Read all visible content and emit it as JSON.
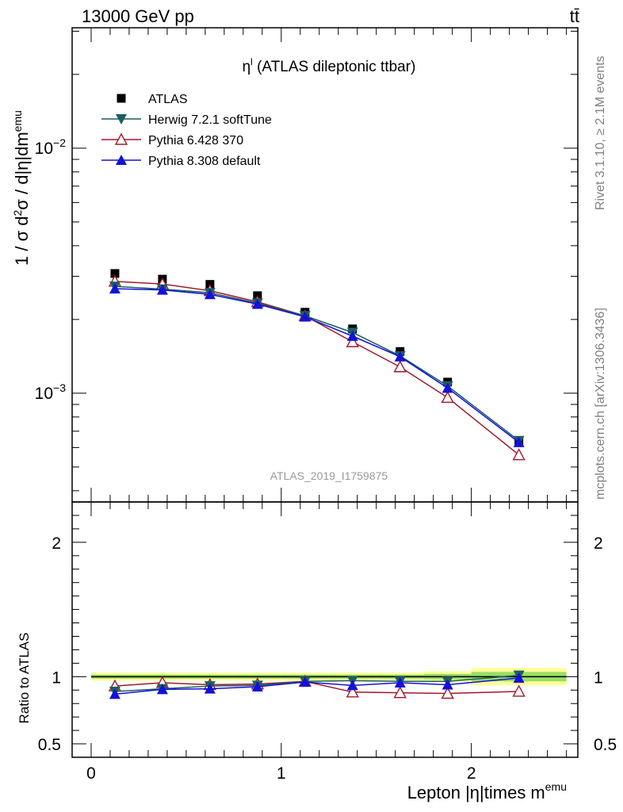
{
  "header": {
    "left": "13000 GeV pp",
    "right": "tt̄"
  },
  "side_text": {
    "rivet": "Rivet 3.1.10, ≥ 2.1M events",
    "mcplots": "mcplots.cern.ch [arXiv:1306.3436]"
  },
  "chart_data": {
    "type": "line",
    "title": "η^l (ATLAS dileptonic ttbar)",
    "title_base": "η",
    "title_sup": "l",
    "title_rest": " (ATLAS dileptonic ttbar)",
    "analysis_label": "ATLAS_2019_I1759875",
    "xlabel": "Lepton |η|times m^emu",
    "xlabel_base": "Lepton |η|times m",
    "xlabel_sup": "emu",
    "ylabel": "1 / σ d²σ / d|η|dm^emu",
    "xlim": [
      -0.1,
      2.56
    ],
    "xticks": [
      0,
      1,
      2
    ],
    "x": [
      0.125,
      0.375,
      0.625,
      0.875,
      1.125,
      1.375,
      1.625,
      1.875,
      2.25
    ],
    "main": {
      "yscale": "log",
      "ylim": [
        0.00036,
        0.031
      ],
      "ytick_labels": [
        "10^−3",
        "10^−2"
      ],
      "ytick_values": [
        0.001,
        0.01
      ],
      "series": [
        {
          "name": "ATLAS",
          "marker": "square",
          "color": "#000000",
          "line": false,
          "values": [
            0.00308,
            0.00292,
            0.00278,
            0.0025,
            0.00214,
            0.00183,
            0.00148,
            0.00111,
            0.00064
          ]
        },
        {
          "name": "Herwig 7.2.1 softTune",
          "marker": "triangle-down",
          "color": "#1d5e5e",
          "line": true,
          "values": [
            0.00273,
            0.00266,
            0.00257,
            0.00233,
            0.00207,
            0.00177,
            0.00142,
            0.00107,
            0.00064
          ]
        },
        {
          "name": "Pythia 6.428 370",
          "marker": "triangle-up-open",
          "color": "#a01a2a",
          "line": true,
          "values": [
            0.00286,
            0.00279,
            0.00262,
            0.00236,
            0.00207,
            0.00162,
            0.00128,
            0.00096,
            0.00056
          ]
        },
        {
          "name": "Pythia 8.308 default",
          "marker": "triangle-up",
          "color": "#1212d8",
          "line": true,
          "values": [
            0.00267,
            0.00264,
            0.00253,
            0.00231,
            0.00205,
            0.00171,
            0.00141,
            0.00105,
            0.00063
          ]
        }
      ]
    },
    "ratio": {
      "ylabel": "Ratio to ATLAS",
      "ylim": [
        0.4,
        2.3
      ],
      "ytick_labels": [
        "0.5",
        "1",
        "2"
      ],
      "ytick_values": [
        0.5,
        1,
        2
      ],
      "band_outer_color": "#ffff99",
      "band_inner_color": "#99dd66",
      "band_outer": [
        0.03,
        0.03,
        0.03,
        0.03,
        0.03,
        0.03,
        0.03,
        0.04,
        0.065
      ],
      "band_inner": [
        0.015,
        0.015,
        0.015,
        0.015,
        0.015,
        0.015,
        0.015,
        0.02,
        0.035
      ],
      "series": [
        {
          "name": "Herwig 7.2.1 softTune",
          "values": [
            0.89,
            0.91,
            0.93,
            0.935,
            0.965,
            0.97,
            0.965,
            0.965,
            1.01
          ]
        },
        {
          "name": "Pythia 6.428 370",
          "values": [
            0.93,
            0.955,
            0.94,
            0.945,
            0.965,
            0.885,
            0.88,
            0.875,
            0.89
          ]
        },
        {
          "name": "Pythia 8.308 default",
          "values": [
            0.87,
            0.905,
            0.91,
            0.925,
            0.96,
            0.935,
            0.955,
            0.94,
            0.99
          ]
        }
      ]
    }
  }
}
